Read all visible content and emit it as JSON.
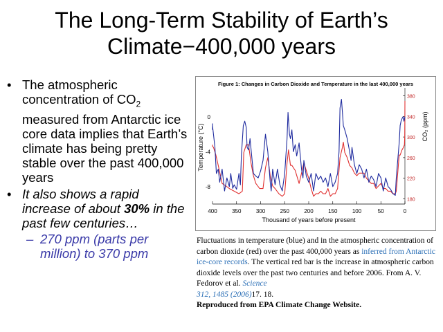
{
  "slide": {
    "title_line1": "The Long-Term Stability of Earth’s",
    "title_line2": "Climate−400,000 years"
  },
  "bullets": {
    "b1_part1": "The atmospheric concentration of CO",
    "b1_sub": "2",
    "b1_part2": " measured from Antarctic ice core data implies that Earth’s climate has being pretty stable over the past 400,000 years",
    "b2_part1": "It also shows a rapid increase of about ",
    "b2_bold": "30%",
    "b2_part2": "  in the past few centuries…",
    "sub": "270 ppm (parts per million) to 370 ppm"
  },
  "caption": {
    "text1": "Fluctuations in temperature (blue) and in the atmospheric concentration of carbon dioxide (red) over the past 400,000 years as ",
    "link": "inferred from Antarctic ice-core records",
    "text2": ". The vertical red bar is the increase in atmospheric carbon dioxide levels over the past two centuries and before 2006. From A. V. Fedorov et al. ",
    "journal": "Science",
    "citation": " 312, 1485 (2006)",
    "text3": "17.  18.",
    "source": "Reproduced from EPA Climate Change Website."
  },
  "chart_data": {
    "type": "line",
    "title": "Figure 1: Changes in Carbon Dioxide and Temperature in the last 400,000 years",
    "xlabel": "Thousand of years before present",
    "ylabel_left": "Temperature (°C)",
    "ylabel_right": "CO₂ (ppm)",
    "x_ticks": [
      "400",
      "350",
      "300",
      "250",
      "200",
      "150",
      "100",
      "50",
      "0"
    ],
    "y_left_ticks": [
      "0",
      "-4",
      "-8"
    ],
    "y_right_ticks": [
      "380",
      "340",
      "300",
      "260",
      "220",
      "180"
    ],
    "xlim": [
      400,
      0
    ],
    "ylim_left": [
      -10,
      3
    ],
    "ylim_right": [
      170,
      390
    ],
    "grid": false,
    "colors": {
      "temperature": "#1e2a9e",
      "co2": "#e03030"
    },
    "series": [
      {
        "key": "co2",
        "x": [
          410,
          402,
          398,
          393,
          388,
          380,
          372,
          365,
          355,
          345,
          338,
          335,
          330,
          325,
          320,
          315,
          310,
          302,
          295,
          290,
          285,
          280,
          275,
          270,
          262,
          255,
          250,
          245,
          242,
          238,
          235,
          228,
          220,
          215,
          210,
          200,
          195,
          190,
          185,
          180,
          175,
          170,
          165,
          160,
          155,
          150,
          145,
          140,
          135,
          130,
          128,
          125,
          120,
          115,
          110,
          105,
          100,
          95,
          90,
          85,
          80,
          75,
          70,
          65,
          60,
          55,
          50,
          45,
          40,
          35,
          30,
          25,
          20,
          18,
          15,
          12,
          10,
          8,
          6,
          3,
          1,
          0.5,
          0.2,
          0
        ],
        "values": [
          285,
          282,
          280,
          265,
          245,
          210,
          205,
          200,
          195,
          190,
          195,
          270,
          285,
          285,
          250,
          225,
          210,
          200,
          200,
          240,
          260,
          225,
          205,
          200,
          190,
          185,
          190,
          250,
          275,
          245,
          245,
          235,
          210,
          230,
          250,
          220,
          200,
          185,
          190,
          190,
          195,
          190,
          190,
          200,
          185,
          190,
          190,
          200,
          260,
          280,
          290,
          270,
          260,
          245,
          240,
          230,
          225,
          230,
          230,
          230,
          220,
          215,
          210,
          210,
          200,
          205,
          210,
          200,
          200,
          195,
          195,
          190,
          190,
          195,
          230,
          265,
          265,
          270,
          275,
          280,
          285,
          300,
          340,
          370
        ]
      },
      {
        "key": "temperature",
        "x": [
          410,
          405,
          400,
          395,
          392,
          388,
          385,
          380,
          375,
          370,
          365,
          362,
          358,
          355,
          350,
          345,
          342,
          340,
          336,
          333,
          330,
          328,
          325,
          322,
          318,
          315,
          310,
          305,
          300,
          295,
          290,
          285,
          280,
          278,
          275,
          270,
          265,
          260,
          255,
          250,
          245,
          243,
          240,
          238,
          235,
          232,
          228,
          225,
          220,
          215,
          212,
          210,
          205,
          200,
          195,
          190,
          185,
          180,
          175,
          170,
          165,
          160,
          155,
          150,
          145,
          140,
          137,
          135,
          132,
          130,
          128,
          125,
          120,
          115,
          112,
          110,
          105,
          100,
          95,
          90,
          85,
          80,
          75,
          70,
          65,
          60,
          55,
          50,
          45,
          40,
          35,
          30,
          25,
          20,
          18,
          15,
          12,
          10,
          8,
          6,
          4,
          2,
          0
        ],
        "values": [
          -1.5,
          -0.8,
          -1.0,
          -3.5,
          -6.5,
          -6.0,
          -7.5,
          -6.0,
          -8.5,
          -7.0,
          -8.0,
          -6.5,
          -8.2,
          -7.8,
          -8.3,
          -6.5,
          -7.8,
          -4.5,
          -1.0,
          -0.5,
          -1.2,
          -3.5,
          -3.8,
          -2.5,
          -4.8,
          -6.5,
          -6.8,
          -7.0,
          -6.2,
          -5.0,
          -2.0,
          -4.0,
          -7.5,
          -8.5,
          -6.0,
          -7.8,
          -6.0,
          -7.8,
          -8.5,
          -6.5,
          -2.5,
          0.5,
          -2.0,
          -2.5,
          -1.5,
          -4.0,
          -3.2,
          -4.5,
          -3.0,
          -6.0,
          -7.0,
          -5.0,
          -6.8,
          -7.5,
          -6.5,
          -8.5,
          -6.5,
          -7.2,
          -6.8,
          -7.5,
          -7.0,
          -8.0,
          -6.5,
          -8.0,
          -7.5,
          -6.5,
          -4.0,
          1.0,
          2.0,
          0.5,
          -1.0,
          -1.5,
          -2.5,
          -4.0,
          -5.0,
          -3.5,
          -5.5,
          -6.5,
          -5.5,
          -6.0,
          -7.0,
          -6.0,
          -7.5,
          -6.8,
          -7.2,
          -8.0,
          -6.5,
          -7.0,
          -8.5,
          -7.0,
          -8.0,
          -8.3,
          -8.8,
          -9.0,
          -7.0,
          -5.0,
          -3.0,
          -1.0,
          -0.5,
          -0.2,
          0.0,
          -0.5,
          0.0
        ]
      }
    ]
  }
}
